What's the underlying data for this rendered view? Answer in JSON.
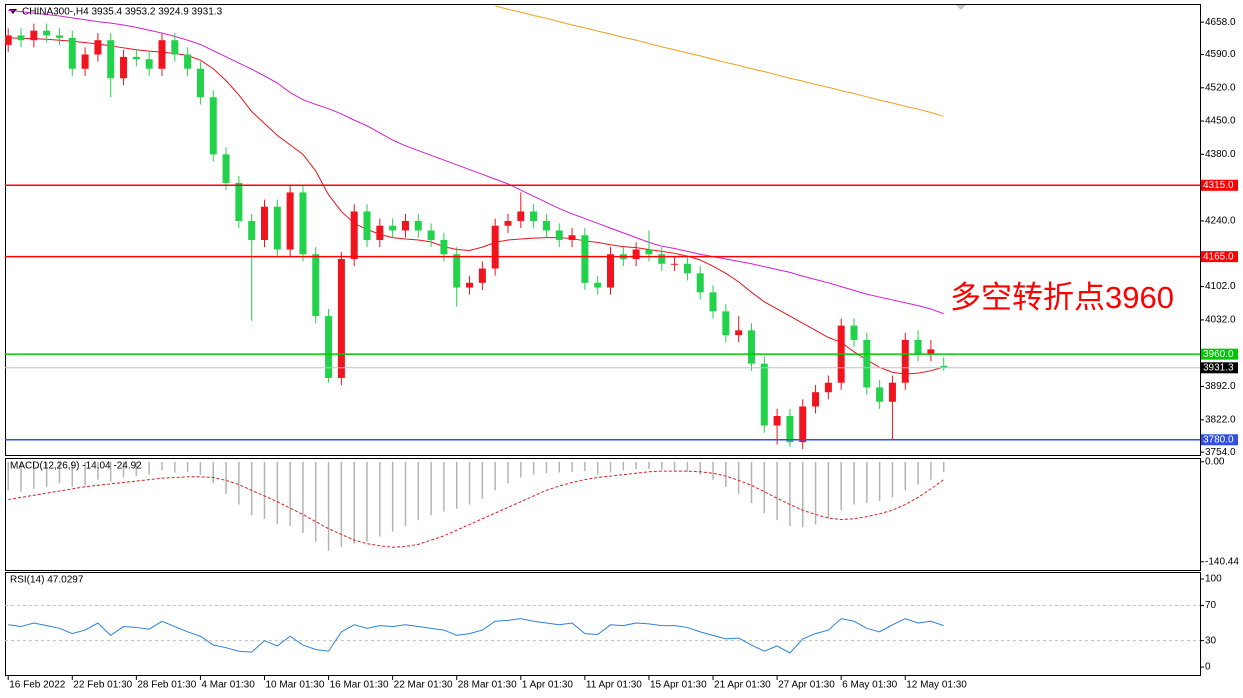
{
  "chart_data": [
    {
      "type": "candlestick",
      "title": "CHINA300-,H4  3935.4 3953.2 3924.9 3931.3",
      "annotation": "多空转折点3960",
      "annotation_color": "#ff0000",
      "up_color": "#f0141e",
      "down_color": "#22d24a",
      "xlim": [
        -0.25,
        93
      ],
      "xticks": [
        {
          "value": 0,
          "label": "16 Feb 2022"
        },
        {
          "value": 5,
          "label": "22 Feb 01:30"
        },
        {
          "value": 10,
          "label": "28 Feb 01:30"
        },
        {
          "value": 15,
          "label": "4 Mar 01:30"
        },
        {
          "value": 20,
          "label": "10 Mar 01:30"
        },
        {
          "value": 25,
          "label": "16 Mar 01:30"
        },
        {
          "value": 30,
          "label": "22 Mar 01:30"
        },
        {
          "value": 35,
          "label": "28 Mar 01:30"
        },
        {
          "value": 40,
          "label": "1 Apr 01:30"
        },
        {
          "value": 45,
          "label": "11 Apr 01:30"
        },
        {
          "value": 50,
          "label": "15 Apr 01:30"
        },
        {
          "value": 55,
          "label": "21 Apr 01:30"
        },
        {
          "value": 60,
          "label": "27 Apr 01:30"
        },
        {
          "value": 65,
          "label": "6 May 01:30"
        },
        {
          "value": 70,
          "label": "12 May 01:30"
        }
      ],
      "ylim": [
        3748,
        4694
      ],
      "yticks": [
        {
          "value": 4658,
          "label": "4658.0"
        },
        {
          "value": 4590,
          "label": "4590.0"
        },
        {
          "value": 4520,
          "label": "4520.0"
        },
        {
          "value": 4450,
          "label": "4450.0"
        },
        {
          "value": 4380,
          "label": "4380.0"
        },
        {
          "value": 4240,
          "label": "4240.0"
        },
        {
          "value": 4102,
          "label": "4102.0"
        },
        {
          "value": 4032,
          "label": "4032.0"
        },
        {
          "value": 3892,
          "label": "3892.0"
        },
        {
          "value": 3822,
          "label": "3822.0"
        },
        {
          "value": 3754,
          "label": "3754.0"
        }
      ],
      "open": [
        4610,
        4630,
        4620,
        4640,
        4630,
        4625,
        4560,
        4590,
        4620,
        4540,
        4585,
        4580,
        4560,
        4620,
        4590,
        4560,
        4500,
        4380,
        4320,
        4240,
        4200,
        4270,
        4180,
        4300,
        4170,
        4040,
        3910,
        4160,
        4260,
        4200,
        4230,
        4220,
        4240,
        4220,
        4200,
        4170,
        4100,
        4110,
        4140,
        4230,
        4240,
        4260,
        4240,
        4220,
        4200,
        4210,
        4110,
        4100,
        4170,
        4160,
        4180,
        4170,
        4150,
        4150,
        4130,
        4090,
        4050,
        4000,
        4010,
        3940,
        3810,
        3830,
        3775,
        3850,
        3880,
        3900,
        4020,
        3990,
        3890,
        3860,
        3900,
        3990,
        3960,
        3935.4
      ],
      "high": [
        4645,
        4645,
        4655,
        4655,
        4645,
        4640,
        4605,
        4635,
        4635,
        4600,
        4600,
        4595,
        4635,
        4635,
        4605,
        4575,
        4515,
        4395,
        4335,
        4255,
        4285,
        4285,
        4315,
        4315,
        4185,
        4055,
        4175,
        4275,
        4275,
        4245,
        4245,
        4255,
        4255,
        4235,
        4215,
        4185,
        4125,
        4155,
        4245,
        4255,
        4300,
        4275,
        4255,
        4235,
        4225,
        4225,
        4125,
        4185,
        4185,
        4195,
        4220,
        4185,
        4165,
        4165,
        4145,
        4105,
        4065,
        4040,
        4025,
        3955,
        3845,
        3845,
        3865,
        3895,
        3915,
        4035,
        4035,
        4005,
        3905,
        3915,
        4005,
        4010,
        3990,
        3953.2
      ],
      "low": [
        4595,
        4605,
        4605,
        4615,
        4610,
        4545,
        4545,
        4575,
        4500,
        4525,
        4565,
        4545,
        4545,
        4575,
        4545,
        4485,
        4365,
        4305,
        4225,
        4030,
        4185,
        4165,
        4165,
        4155,
        4025,
        3900,
        3895,
        4145,
        4185,
        4185,
        4205,
        4205,
        4205,
        4185,
        4155,
        4060,
        4085,
        4095,
        4125,
        4215,
        4225,
        4225,
        4205,
        4185,
        4185,
        4095,
        4085,
        4085,
        4145,
        4145,
        4155,
        4135,
        4135,
        4115,
        4075,
        4035,
        3985,
        3985,
        3925,
        3795,
        3770,
        3765,
        3760,
        3835,
        3865,
        3885,
        3975,
        3875,
        3845,
        3780,
        3885,
        3945,
        3945,
        3924.9
      ],
      "close": [
        4630,
        4620,
        4640,
        4630,
        4625,
        4560,
        4590,
        4620,
        4540,
        4585,
        4580,
        4560,
        4620,
        4590,
        4560,
        4500,
        4380,
        4320,
        4240,
        4200,
        4270,
        4180,
        4300,
        4170,
        4040,
        3910,
        4160,
        4260,
        4200,
        4230,
        4220,
        4240,
        4220,
        4200,
        4170,
        4100,
        4110,
        4140,
        4230,
        4240,
        4260,
        4240,
        4220,
        4200,
        4210,
        4110,
        4100,
        4170,
        4160,
        4180,
        4170,
        4150,
        4150,
        4130,
        4090,
        4050,
        4000,
        4010,
        3940,
        3810,
        3830,
        3775,
        3850,
        3880,
        3900,
        4020,
        3990,
        3890,
        3860,
        3900,
        3990,
        3960,
        3970,
        3931.3
      ],
      "lines": [
        {
          "color": "#e8141e",
          "values": [
            4625,
            4624,
            4623,
            4622,
            4620,
            4618,
            4615,
            4612,
            4608,
            4604,
            4600,
            4597,
            4595,
            4592,
            4588,
            4578,
            4560,
            4535,
            4505,
            4470,
            4445,
            4420,
            4400,
            4380,
            4345,
            4295,
            4260,
            4235,
            4222,
            4212,
            4205,
            4202,
            4200,
            4196,
            4186,
            4180,
            4178,
            4185,
            4195,
            4200,
            4202,
            4204,
            4205,
            4205,
            4203,
            4198,
            4195,
            4190,
            4186,
            4184,
            4180,
            4176,
            4172,
            4166,
            4158,
            4145,
            4130,
            4112,
            4090,
            4070,
            4055,
            4040,
            4025,
            4010,
            3995,
            3985,
            3965,
            3948,
            3932,
            3922,
            3918,
            3920,
            3925,
            3933
          ]
        },
        {
          "color": "#d21ed2",
          "values": [
            4683,
            4680,
            4677,
            4674,
            4671,
            4667,
            4663,
            4659,
            4656,
            4652,
            4647,
            4641,
            4635,
            4628,
            4620,
            4611,
            4598,
            4585,
            4572,
            4559,
            4545,
            4530,
            4510,
            4495,
            4485,
            4476,
            4465,
            4452,
            4440,
            4425,
            4410,
            4398,
            4388,
            4378,
            4368,
            4358,
            4348,
            4338,
            4328,
            4318,
            4305,
            4292,
            4279,
            4266,
            4255,
            4245,
            4235,
            4225,
            4215,
            4205,
            4195,
            4187,
            4182,
            4176,
            4170,
            4165,
            4160,
            4155,
            4150,
            4144,
            4138,
            4132,
            4124,
            4117,
            4110,
            4102,
            4094,
            4086,
            4080,
            4074,
            4068,
            4062,
            4055,
            4045
          ]
        },
        {
          "color": "#f0a01e",
          "values": [
            null,
            null,
            null,
            null,
            null,
            null,
            null,
            null,
            null,
            null,
            null,
            null,
            null,
            null,
            null,
            null,
            null,
            null,
            null,
            null,
            null,
            null,
            null,
            null,
            null,
            null,
            null,
            null,
            null,
            null,
            null,
            null,
            null,
            null,
            null,
            null,
            null,
            null,
            4692,
            4685,
            4679,
            4672,
            4666,
            4659,
            4652,
            4646,
            4639,
            4633,
            4626,
            4620,
            4613,
            4606,
            4600,
            4593,
            4587,
            4580,
            4573,
            4567,
            4560,
            4554,
            4547,
            4540,
            4534,
            4527,
            4521,
            4514,
            4508,
            4501,
            4494,
            4488,
            4481,
            4475,
            4468,
            4460
          ]
        }
      ],
      "levels": [
        {
          "value": 4315,
          "label": "4315.0",
          "color": "#ff0000",
          "box_color": "#ff0000"
        },
        {
          "value": 4165,
          "label": "4165.0",
          "color": "#ff0000",
          "box_color": "#ff0000"
        },
        {
          "value": 3960,
          "label": "3960.0",
          "color": "#00c800",
          "box_color": "#00c800"
        },
        {
          "value": 3780,
          "label": "3780.0",
          "color": "#3050e0",
          "box_color": "#3050e0"
        },
        {
          "value": 3931.3,
          "label": "3931.3",
          "color": "#c0c0c0",
          "box_color": "#000000"
        }
      ]
    },
    {
      "type": "macd",
      "title": "MACD(12,26,9) -14.04 -24.92",
      "ylim": [
        -152,
        4
      ],
      "yticks": [
        {
          "value": 0,
          "label": "0.00"
        },
        {
          "value": -140.44,
          "label": "-140.44"
        }
      ],
      "histogram_color": "#b4b4b4",
      "signal_color": "#e01e1e",
      "histogram": [
        -40,
        -42,
        -38,
        -35,
        -30,
        -35,
        -33,
        -25,
        -28,
        -22,
        -20,
        -18,
        -12,
        -15,
        -14,
        -18,
        -30,
        -45,
        -60,
        -75,
        -80,
        -88,
        -90,
        -100,
        -112,
        -125,
        -120,
        -115,
        -112,
        -105,
        -98,
        -90,
        -82,
        -75,
        -70,
        -66,
        -60,
        -52,
        -40,
        -30,
        -22,
        -18,
        -16,
        -15,
        -14,
        -13,
        -18,
        -15,
        -12,
        -10,
        -10,
        -11,
        -12,
        -14,
        -18,
        -25,
        -35,
        -45,
        -58,
        -72,
        -82,
        -90,
        -92,
        -88,
        -80,
        -68,
        -60,
        -58,
        -55,
        -50,
        -40,
        -32,
        -25,
        -14.04
      ],
      "signal": [
        -53,
        -50,
        -47,
        -44,
        -41,
        -38,
        -35,
        -33,
        -31,
        -29,
        -27,
        -25,
        -23,
        -22,
        -21,
        -21,
        -22,
        -26,
        -32,
        -40,
        -48,
        -56,
        -65,
        -74,
        -84,
        -94,
        -102,
        -110,
        -115,
        -118,
        -120,
        -119,
        -116,
        -110,
        -104,
        -96,
        -88,
        -80,
        -72,
        -64,
        -56,
        -48,
        -40,
        -34,
        -29,
        -25,
        -22,
        -20,
        -18,
        -16,
        -14,
        -13,
        -13,
        -13,
        -14,
        -16,
        -20,
        -26,
        -33,
        -42,
        -51,
        -60,
        -68,
        -74,
        -79,
        -81,
        -80,
        -77,
        -73,
        -68,
        -60,
        -50,
        -38,
        -24.92
      ]
    },
    {
      "type": "rsi",
      "title": "RSI(14) 47.0297",
      "ylim": [
        -9,
        106.8
      ],
      "yticks": [
        100,
        70,
        30,
        0
      ],
      "levels": [
        70,
        30
      ],
      "color": "#2a82dc",
      "values": [
        48,
        46,
        50,
        47,
        44,
        38,
        42,
        50,
        36,
        46,
        45,
        43,
        52,
        46,
        40,
        35,
        25,
        22,
        18,
        17,
        30,
        24,
        35,
        25,
        20,
        18,
        40,
        48,
        44,
        47,
        46,
        48,
        46,
        44,
        42,
        36,
        38,
        42,
        52,
        53,
        55,
        52,
        50,
        48,
        50,
        38,
        37,
        48,
        47,
        50,
        49,
        47,
        47,
        45,
        40,
        36,
        32,
        33,
        25,
        18,
        24,
        16,
        32,
        38,
        42,
        55,
        52,
        44,
        40,
        48,
        55,
        50,
        52,
        47.0297
      ]
    }
  ]
}
